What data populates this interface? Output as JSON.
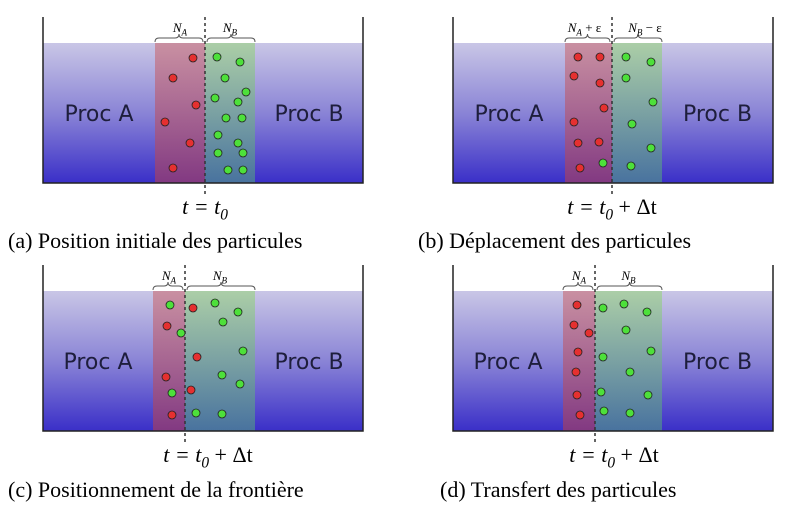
{
  "panels": [
    {
      "left": "Proc A",
      "right": "Proc B",
      "na": {
        "main": "N",
        "sub": "A"
      },
      "nb": {
        "main": "N",
        "sub": "B"
      },
      "time": {
        "main": "t = t",
        "sub": "0"
      },
      "caption": "(a) Position initiale des particules"
    },
    {
      "left": "Proc A",
      "right": "Proc B",
      "na": {
        "main": "N",
        "sub": "A",
        "rest": " + ε"
      },
      "nb": {
        "main": "N",
        "sub": "B",
        "rest": " − ε"
      },
      "time": {
        "main": "t = t",
        "sub": "0",
        "rest": " + Δt"
      },
      "caption": "(b) Déplacement des particules"
    },
    {
      "left": "Proc A",
      "right": "Proc B",
      "na": {
        "main": "N",
        "sub": "A"
      },
      "nb": {
        "main": "N",
        "sub": "B"
      },
      "time": {
        "main": "t = t",
        "sub": "0",
        "rest": " + Δt"
      },
      "caption": "(c) Positionnement de la frontière"
    },
    {
      "left": "Proc A",
      "right": "Proc B",
      "na": {
        "main": "N",
        "sub": "A"
      },
      "nb": {
        "main": "N",
        "sub": "B"
      },
      "time": {
        "main": "t = t",
        "sub": "0",
        "rest": " + Δt"
      },
      "caption": "(d) Transfert des particules"
    }
  ]
}
